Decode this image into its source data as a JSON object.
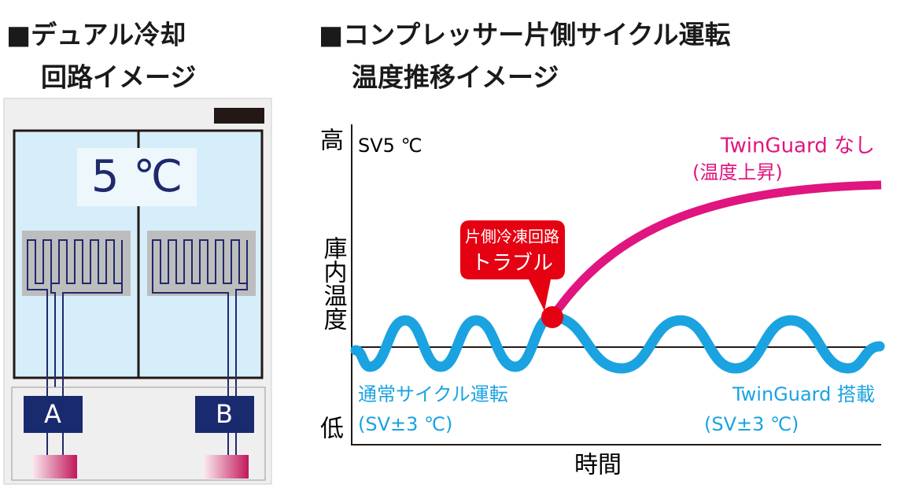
{
  "left": {
    "title_line1": "■デュアル冷却",
    "title_line2": "回路イメージ",
    "temperature": "5 ℃",
    "units": [
      "A",
      "B"
    ]
  },
  "right": {
    "title_line1": "■コンプレッサー片側サイクル運転",
    "title_line2": "温度推移イメージ",
    "y_high": "高",
    "y_label": "庫内温度",
    "y_low": "低",
    "x_label": "時間",
    "setpoint": "SV5 ℃",
    "callout_line1": "片側冷凍回路",
    "callout_line2": "トラブル",
    "without_line1": "TwinGuard なし",
    "without_line2": "(温度上昇)",
    "normal_line1": "通常サイクル運転",
    "normal_line2": "(SV±3 ℃)",
    "with_line1": "TwinGuard 搭載",
    "with_line2": "(SV±3 ℃)"
  }
}
